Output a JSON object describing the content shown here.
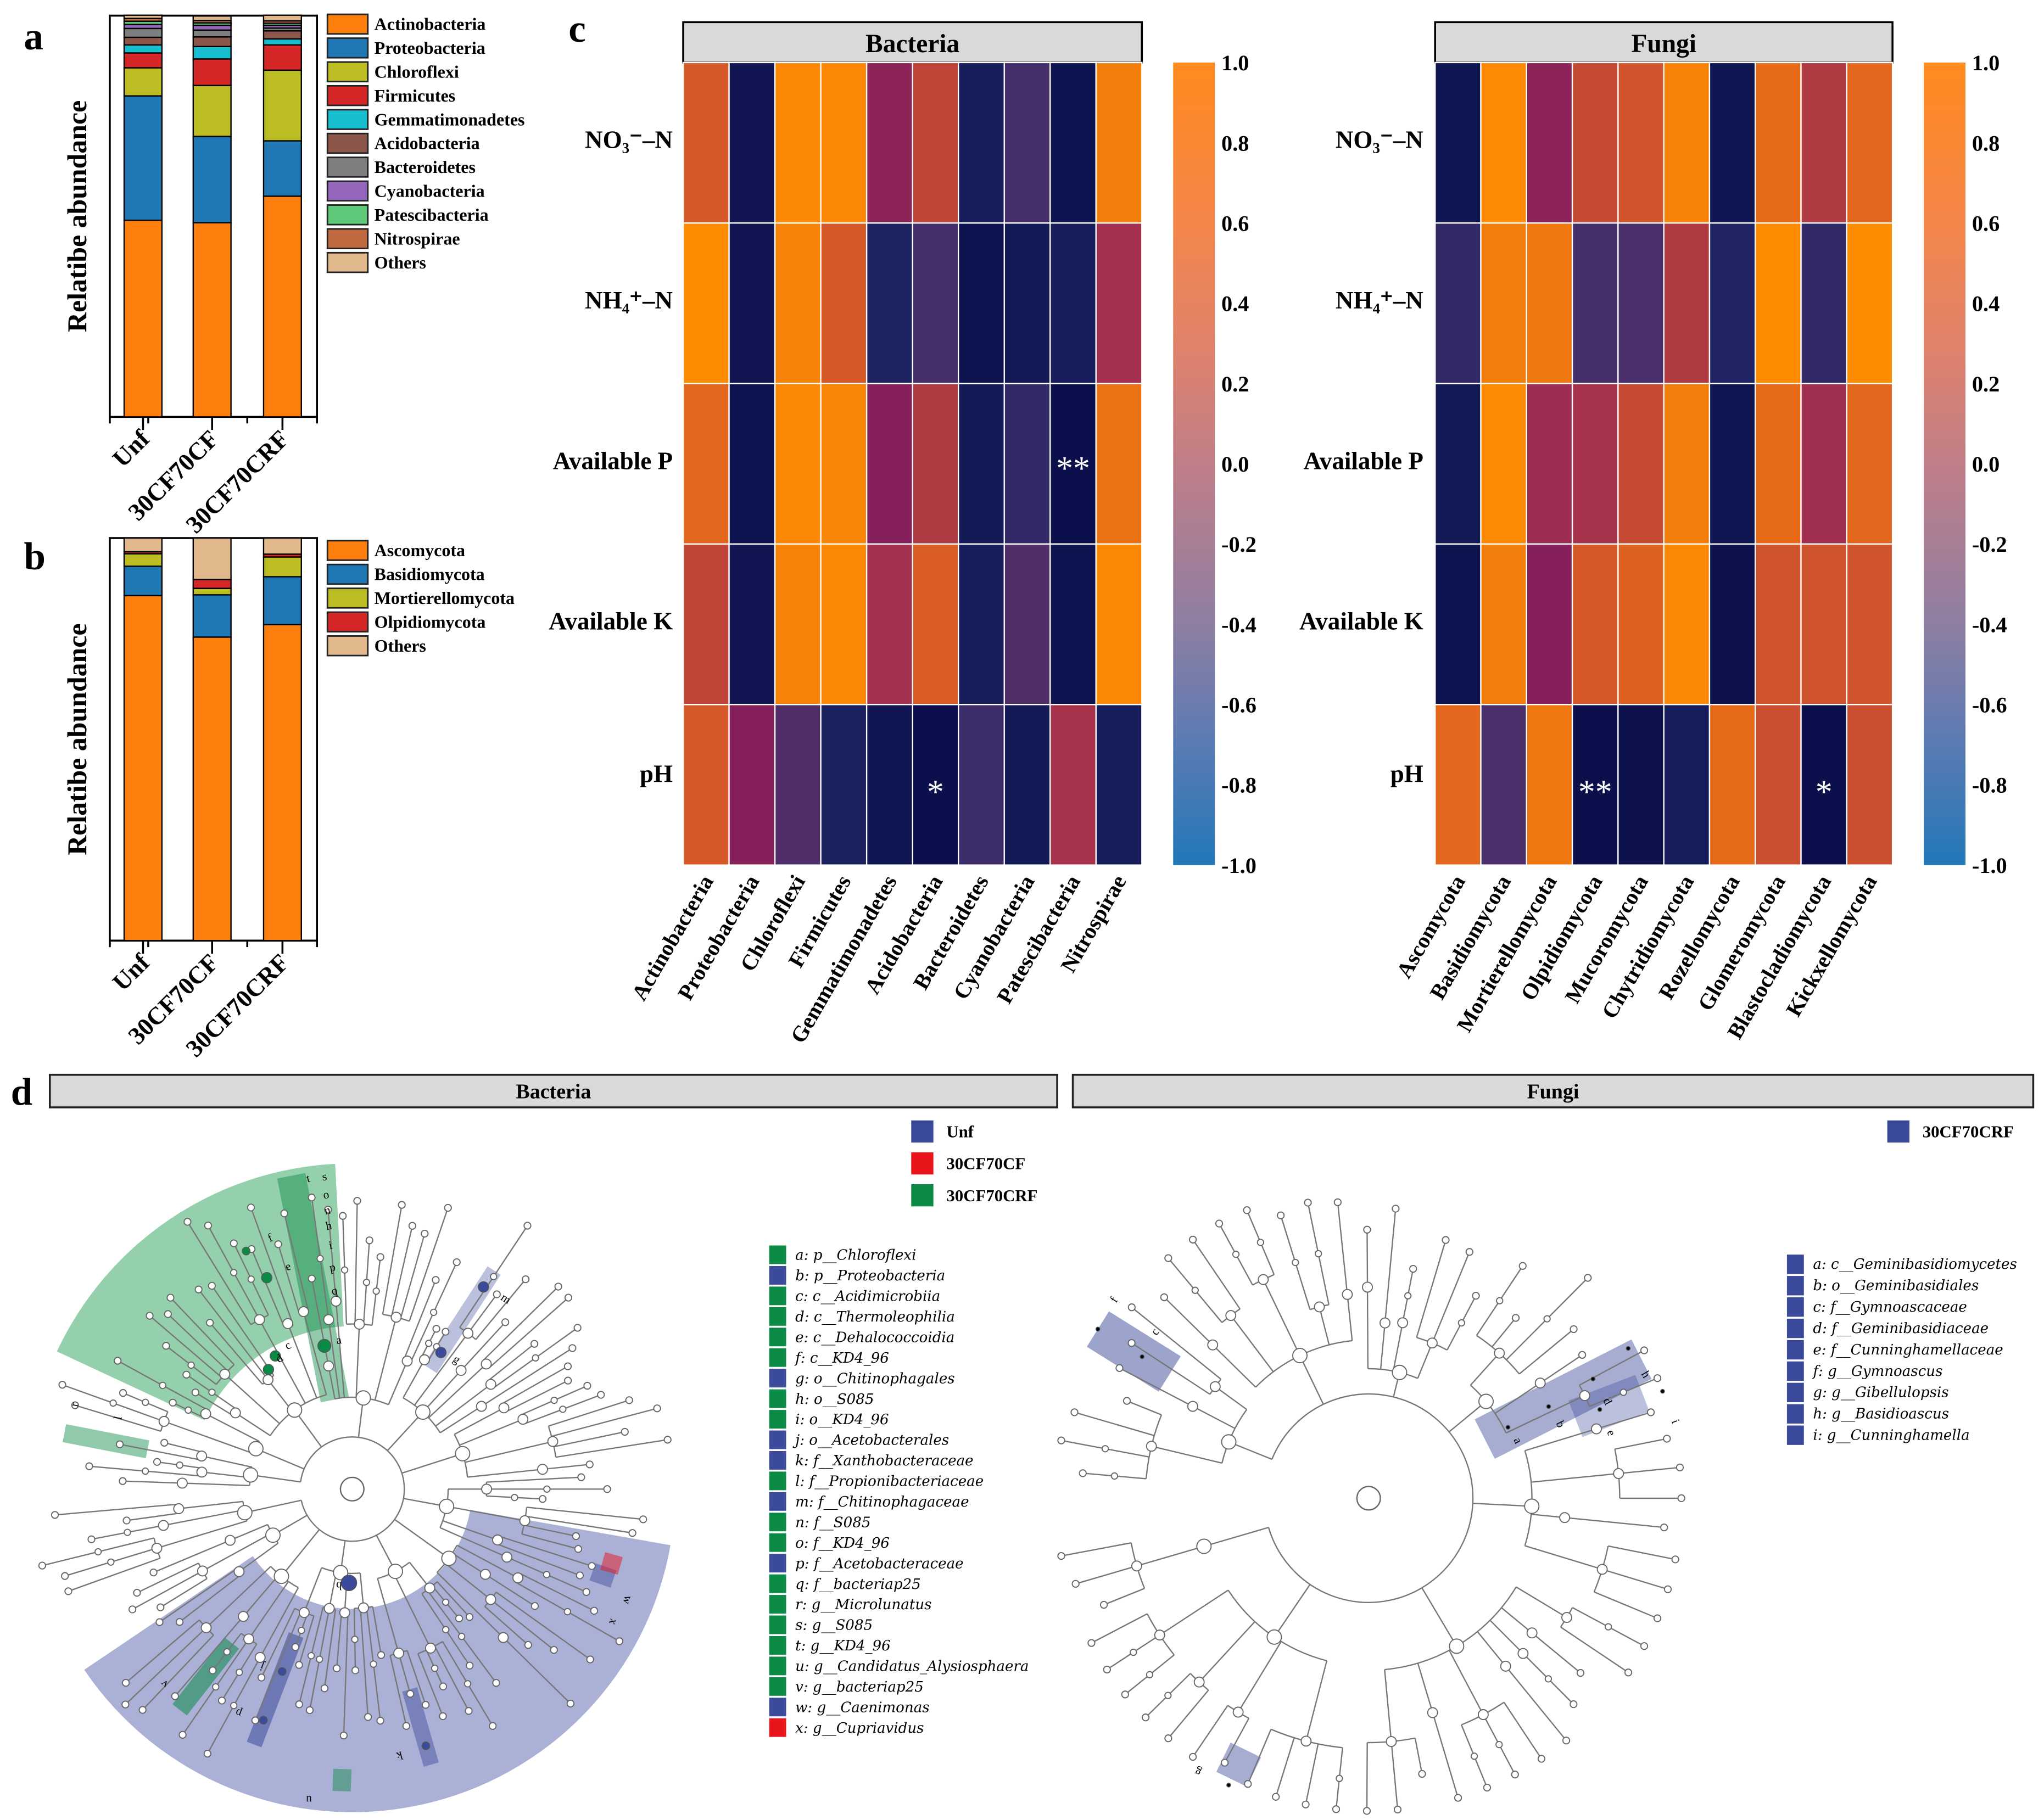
{
  "panel_labels": [
    "a",
    "b",
    "c",
    "d"
  ],
  "chart_data": [
    {
      "panel": "a",
      "type": "bar",
      "stacked": true,
      "ylabel": "Relatibe abundance",
      "ylim": [
        0,
        100
      ],
      "categories": [
        "Unf",
        "30CF70CF",
        "30CF70CRF"
      ],
      "series": [
        {
          "name": "Actinobacteria",
          "color": "#ff7f0e",
          "values": [
            49.0,
            48.4,
            55.0
          ]
        },
        {
          "name": "Proteobacteria",
          "color": "#1f77b4",
          "values": [
            31.0,
            21.5,
            13.8
          ]
        },
        {
          "name": "Chloroflexi",
          "color": "#bcbd22",
          "values": [
            7.0,
            12.7,
            17.6
          ]
        },
        {
          "name": "Firmicutes",
          "color": "#d62728",
          "values": [
            3.7,
            6.6,
            6.3
          ]
        },
        {
          "name": "Gemmatimonadetes",
          "color": "#17becf",
          "values": [
            2.0,
            3.1,
            1.5
          ]
        },
        {
          "name": "Acidobacteria",
          "color": "#8c564b",
          "values": [
            1.9,
            2.4,
            2.0
          ]
        },
        {
          "name": "Bacteroidetes",
          "color": "#7f7f7f",
          "values": [
            2.2,
            1.7,
            0.7
          ]
        },
        {
          "name": "Cyanobacteria",
          "color": "#9467bd",
          "values": [
            1.0,
            1.2,
            0.7
          ]
        },
        {
          "name": "Patescibacteria",
          "color": "#5cc878",
          "values": [
            0.8,
            0.6,
            0.5
          ]
        },
        {
          "name": "Nitrospirae",
          "color": "#c0693e",
          "values": [
            0.7,
            0.6,
            0.6
          ]
        },
        {
          "name": "Others",
          "color": "#e1b78c",
          "values": [
            0.8,
            1.1,
            1.4
          ]
        }
      ]
    },
    {
      "panel": "b",
      "type": "bar",
      "stacked": true,
      "ylabel": "Relatibe abundance",
      "ylim": [
        0,
        100
      ],
      "categories": [
        "Unf",
        "30CF70CF",
        "30CF70CRF"
      ],
      "series": [
        {
          "name": "Ascomycota",
          "color": "#ff7f0e",
          "values": [
            85.7,
            75.4,
            78.5
          ]
        },
        {
          "name": "Basidiomycota",
          "color": "#1f77b4",
          "values": [
            7.3,
            10.5,
            11.9
          ]
        },
        {
          "name": "Mortierellomycota",
          "color": "#bcbd22",
          "values": [
            3.1,
            1.6,
            4.9
          ]
        },
        {
          "name": "Olpidiomycota",
          "color": "#d62728",
          "values": [
            0.5,
            2.2,
            0.7
          ]
        },
        {
          "name": "Others",
          "color": "#e1b78c",
          "values": [
            3.4,
            10.3,
            4.0
          ]
        }
      ]
    },
    {
      "panel": "c",
      "type": "heatmap",
      "title": "Bacteria",
      "rows": [
        "NO₃⁻–N",
        "NH₄⁺–N",
        "Available P",
        "Available K",
        "pH"
      ],
      "columns": [
        "Actinobacteria",
        "Proteobacteria",
        "Chloroflexi",
        "Firmicutes",
        "Gemmatimonadetes",
        "Acidobacteria",
        "Bacteroidetes",
        "Cyanobacteria",
        "Patescibacteria",
        "Nitrospirae"
      ],
      "values": [
        [
          0.5,
          -0.9,
          0.95,
          0.95,
          -0.1,
          0.3,
          -0.8,
          -0.5,
          -0.95,
          0.85
        ],
        [
          1.0,
          -0.9,
          0.9,
          0.5,
          -0.7,
          -0.5,
          -0.95,
          -0.85,
          -0.8,
          0.1
        ],
        [
          0.65,
          -0.95,
          0.95,
          0.92,
          -0.15,
          0.2,
          -0.85,
          -0.6,
          -0.98,
          0.75
        ],
        [
          0.3,
          -0.9,
          0.9,
          0.95,
          0.1,
          0.55,
          -0.8,
          -0.45,
          -0.95,
          0.95
        ],
        [
          0.5,
          -0.15,
          -0.45,
          -0.75,
          -0.92,
          -0.98,
          -0.55,
          -0.85,
          0.12,
          -0.8
        ]
      ],
      "significance": [
        {
          "row": 2,
          "col": 8,
          "mark": "**"
        },
        {
          "row": 4,
          "col": 5,
          "mark": "*"
        }
      ],
      "colorbar": {
        "range": [
          -1,
          1
        ],
        "ticks": [
          "1.0",
          "0.8",
          "0.6",
          "0.4",
          "0.2",
          "0.0",
          "-0.2",
          "-0.4",
          "-0.6",
          "-0.8",
          "-1.0"
        ]
      }
    },
    {
      "panel": "c",
      "type": "heatmap",
      "title": "Fungi",
      "rows": [
        "NO₃⁻–N",
        "NH₄⁺–N",
        "Available P",
        "Available K",
        "pH"
      ],
      "columns": [
        "Ascomycota",
        "Basidiomycota",
        "Mortierellomycota",
        "Olpidiomycota",
        "Mucoromycota",
        "Chytridiomycota",
        "Rozellomycota",
        "Glomeromycota",
        "Blastocladiomycota",
        "Kickxellomycota"
      ],
      "values": [
        [
          -0.92,
          0.98,
          -0.1,
          0.35,
          0.45,
          0.9,
          -0.92,
          0.7,
          0.2,
          0.65
        ],
        [
          -0.6,
          0.85,
          0.8,
          -0.5,
          -0.48,
          0.2,
          -0.68,
          1.0,
          -0.6,
          1.0
        ],
        [
          -0.85,
          0.98,
          0.05,
          0.12,
          0.35,
          0.85,
          -0.92,
          0.7,
          0.08,
          0.65
        ],
        [
          -0.95,
          0.85,
          -0.15,
          0.5,
          0.6,
          0.95,
          -0.97,
          0.45,
          0.45,
          0.45
        ],
        [
          0.65,
          -0.48,
          0.8,
          -0.98,
          -0.97,
          -0.8,
          0.7,
          0.4,
          -0.98,
          0.4
        ]
      ],
      "significance": [
        {
          "row": 4,
          "col": 3,
          "mark": "**"
        },
        {
          "row": 4,
          "col": 8,
          "mark": "*"
        }
      ],
      "colorbar": {
        "range": [
          -1,
          1
        ],
        "ticks": [
          "1.0",
          "0.8",
          "0.6",
          "0.4",
          "0.2",
          "0.0",
          "-0.2",
          "-0.4",
          "-0.6",
          "-0.8",
          "-1.0"
        ]
      }
    },
    {
      "panel": "d",
      "type": "cladogram",
      "title": "Bacteria",
      "groups": [
        {
          "name": "Unf",
          "color": "#3b4a9a"
        },
        {
          "name": "30CF70CF",
          "color": "#e8161b"
        },
        {
          "name": "30CF70CRF",
          "color": "#0a8a45"
        }
      ],
      "taxa": [
        {
          "key": "a",
          "label": "a: p__Chloroflexi",
          "group": "30CF70CRF"
        },
        {
          "key": "b",
          "label": "b: p__Proteobacteria",
          "group": "Unf"
        },
        {
          "key": "c",
          "label": "c: c__Acidimicrobiia",
          "group": "30CF70CRF"
        },
        {
          "key": "d",
          "label": "d: c__Thermoleophilia",
          "group": "30CF70CRF"
        },
        {
          "key": "e",
          "label": "e: c__Dehalococcoidia",
          "group": "30CF70CRF"
        },
        {
          "key": "f",
          "label": "f: c__KD4_96",
          "group": "30CF70CRF"
        },
        {
          "key": "g",
          "label": "g: o__Chitinophagales",
          "group": "Unf"
        },
        {
          "key": "h",
          "label": "h: o__S085",
          "group": "30CF70CRF"
        },
        {
          "key": "i",
          "label": "i: o__KD4_96",
          "group": "30CF70CRF"
        },
        {
          "key": "j",
          "label": "j: o__Acetobacterales",
          "group": "Unf"
        },
        {
          "key": "k",
          "label": "k: f__Xanthobacteraceae",
          "group": "Unf"
        },
        {
          "key": "l",
          "label": "l: f__Propionibacteriaceae",
          "group": "30CF70CRF"
        },
        {
          "key": "m",
          "label": "m: f__Chitinophagaceae",
          "group": "Unf"
        },
        {
          "key": "n",
          "label": "n: f__S085",
          "group": "30CF70CRF"
        },
        {
          "key": "o",
          "label": "o: f__KD4_96",
          "group": "30CF70CRF"
        },
        {
          "key": "p",
          "label": "p: f__Acetobacteraceae",
          "group": "Unf"
        },
        {
          "key": "q",
          "label": "q: f__bacteriap25",
          "group": "30CF70CRF"
        },
        {
          "key": "r",
          "label": "r: g__Microlunatus",
          "group": "30CF70CRF"
        },
        {
          "key": "s",
          "label": "s: g__S085",
          "group": "30CF70CRF"
        },
        {
          "key": "t",
          "label": "t: g__KD4_96",
          "group": "30CF70CRF"
        },
        {
          "key": "u",
          "label": "u: g__Candidatus_Alysiosphaera",
          "group": "30CF70CRF"
        },
        {
          "key": "v",
          "label": "v: g__bacteriap25",
          "group": "30CF70CRF"
        },
        {
          "key": "w",
          "label": "w: g__Caenimonas",
          "group": "Unf"
        },
        {
          "key": "x",
          "label": "x: g__Cupriavidus",
          "group": "30CF70CF"
        }
      ]
    },
    {
      "panel": "d",
      "type": "cladogram",
      "title": "Fungi",
      "groups": [
        {
          "name": "30CF70CRF",
          "color": "#3b4a9a"
        }
      ],
      "taxa": [
        {
          "key": "a",
          "label": "a: c__Geminibasidiomycetes",
          "group": "30CF70CRF"
        },
        {
          "key": "b",
          "label": "b: o__Geminibasidiales",
          "group": "30CF70CRF"
        },
        {
          "key": "c",
          "label": "c: f__Gymnoascaceae",
          "group": "30CF70CRF"
        },
        {
          "key": "d",
          "label": "d: f__Geminibasidiaceae",
          "group": "30CF70CRF"
        },
        {
          "key": "e",
          "label": "e: f__Cunninghamellaceae",
          "group": "30CF70CRF"
        },
        {
          "key": "f",
          "label": "f: g__Gymnoascus",
          "group": "30CF70CRF"
        },
        {
          "key": "g",
          "label": "g: g__Gibellulopsis",
          "group": "30CF70CRF"
        },
        {
          "key": "h",
          "label": "h: g__Basidioascus",
          "group": "30CF70CRF"
        },
        {
          "key": "i",
          "label": "i: g__Cunninghamella",
          "group": "30CF70CRF"
        }
      ]
    }
  ]
}
